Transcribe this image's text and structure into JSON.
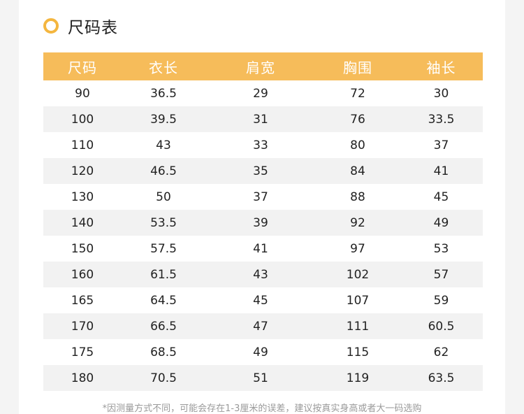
{
  "heading": {
    "title": "尺码表",
    "accent": "#f4b63f"
  },
  "table": {
    "header_bg": "#f6bc5a",
    "stripe_bg": "#f2f2f2",
    "columns": [
      "尺码",
      "衣长",
      "肩宽",
      "胸围",
      "袖长"
    ],
    "rows": [
      [
        "90",
        "36.5",
        "29",
        "72",
        "30"
      ],
      [
        "100",
        "39.5",
        "31",
        "76",
        "33.5"
      ],
      [
        "110",
        "43",
        "33",
        "80",
        "37"
      ],
      [
        "120",
        "46.5",
        "35",
        "84",
        "41"
      ],
      [
        "130",
        "50",
        "37",
        "88",
        "45"
      ],
      [
        "140",
        "53.5",
        "39",
        "92",
        "49"
      ],
      [
        "150",
        "57.5",
        "41",
        "97",
        "53"
      ],
      [
        "160",
        "61.5",
        "43",
        "102",
        "57"
      ],
      [
        "165",
        "64.5",
        "45",
        "107",
        "59"
      ],
      [
        "170",
        "66.5",
        "47",
        "111",
        "60.5"
      ],
      [
        "175",
        "68.5",
        "49",
        "115",
        "62"
      ],
      [
        "180",
        "70.5",
        "51",
        "119",
        "63.5"
      ]
    ]
  },
  "footnote": "*因测量方式不同，可能会存在1-3厘米的误差，建议按真实身高或者大一码选购"
}
